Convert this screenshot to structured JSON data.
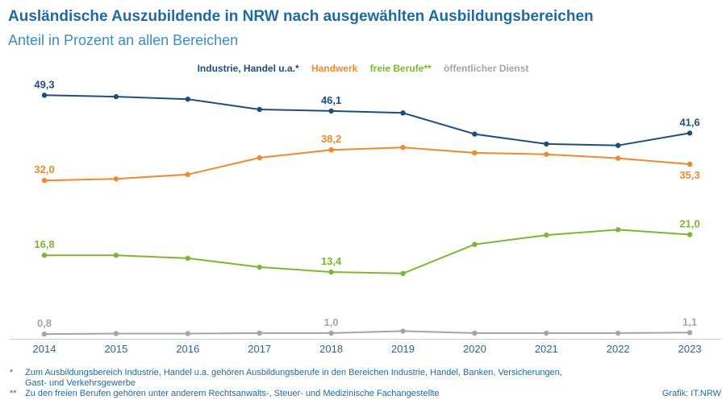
{
  "theme": {
    "title": "#1d6aa5",
    "subtitle": "#3b8dcc",
    "axis_text": "#2468a0",
    "footnote_text": "#2468a0",
    "axis_line": "#cccccc"
  },
  "chart_data": {
    "type": "line",
    "title": "Ausländische Auszubildende in NRW nach ausgewählten Ausbildungsbereichen",
    "subtitle": "Anteil in Prozent an allen Bereichen",
    "xlabel": "",
    "ylabel": "",
    "categories": [
      "2014",
      "2015",
      "2016",
      "2017",
      "2018",
      "2019",
      "2020",
      "2021",
      "2022",
      "2023"
    ],
    "ylim": [
      0,
      50
    ],
    "grid": false,
    "legend_position": "top-center",
    "series": [
      {
        "name": "Industrie, Handel u.a.*",
        "color": "#1d4f7c",
        "values": [
          49.3,
          49.0,
          48.5,
          46.4,
          46.1,
          45.7,
          41.4,
          39.4,
          39.1,
          41.6
        ],
        "labels": [
          {
            "text": "49,3",
            "position": "above"
          },
          null,
          null,
          null,
          {
            "text": "46,1",
            "position": "above"
          },
          null,
          null,
          null,
          null,
          {
            "text": "41,6",
            "position": "above"
          }
        ]
      },
      {
        "name": "Handwerk",
        "color": "#f0892d",
        "values": [
          32.0,
          32.3,
          33.2,
          36.6,
          38.2,
          38.7,
          37.6,
          37.3,
          36.5,
          35.3
        ],
        "labels": [
          {
            "text": "32,0",
            "position": "above"
          },
          null,
          null,
          null,
          {
            "text": "38,2",
            "position": "above"
          },
          null,
          null,
          null,
          null,
          {
            "text": "35,3",
            "position": "below"
          }
        ]
      },
      {
        "name": "freie Berufe**",
        "color": "#7cb731",
        "values": [
          16.8,
          16.8,
          16.2,
          14.4,
          13.4,
          13.1,
          19.0,
          20.9,
          22.0,
          21.0
        ],
        "labels": [
          {
            "text": "16,8",
            "position": "above"
          },
          null,
          null,
          null,
          {
            "text": "13,4",
            "position": "above"
          },
          null,
          null,
          null,
          null,
          {
            "text": "21,0",
            "position": "above"
          }
        ]
      },
      {
        "name": "öffentlicher Dienst",
        "color": "#a5a5a5",
        "values": [
          0.8,
          0.9,
          0.9,
          1.0,
          1.0,
          1.4,
          1.0,
          1.0,
          1.0,
          1.1
        ],
        "labels": [
          {
            "text": "0,8",
            "position": "above"
          },
          null,
          null,
          null,
          {
            "text": "1,0",
            "position": "above"
          },
          null,
          null,
          null,
          null,
          {
            "text": "1,1",
            "position": "above"
          }
        ]
      }
    ]
  },
  "footnotes": [
    {
      "marker": "*",
      "lines": [
        "Zum Ausbildungsbereich Industrie, Handel u.a. gehören Ausbildungsberufe in den Bereichen Industrie, Handel, Banken, Versicherungen,",
        "Gast- und Verkehrsgewerbe"
      ]
    },
    {
      "marker": "**",
      "lines": [
        "Zu den freien Berufen gehören unter anderem Rechtsanwalts-, Steuer- und Medizinische Fachangestellte"
      ]
    }
  ],
  "source": "Grafik: IT.NRW"
}
